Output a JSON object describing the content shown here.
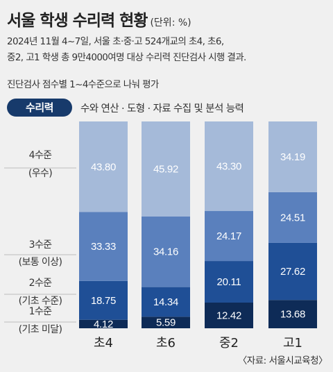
{
  "title": "서울 학생 수리력 현황",
  "unit": "(단위: %)",
  "description": [
    "2024년 11월 4~7일, 서울 초·중·고 524개교의  초4, 초6,",
    "중2, 고1 학생 총 9만4000여명 대상 수리력 진단검사 시행 결과.",
    "진단검사 점수별 1~4수준으로 나눠 평가"
  ],
  "legend": {
    "pill": "수리력",
    "text": "수와 연산 · 도형 · 자료 수집 및 분석 능력"
  },
  "source": "〈자료: 서울시교육청〉",
  "colors": {
    "level4": "#a5bad9",
    "level3": "#5a80bd",
    "level2": "#1f4f96",
    "level1": "#0e2b57",
    "gridline": "#bdbdbd",
    "label_light": "#ffffff"
  },
  "chart_data": {
    "type": "bar",
    "stacked": true,
    "categories": [
      "초4",
      "초6",
      "중2",
      "고1"
    ],
    "series": [
      {
        "name": "1수준\n(기초 미달)",
        "values": [
          4.12,
          5.59,
          12.42,
          13.68
        ]
      },
      {
        "name": "2수준\n(기초 수준)",
        "values": [
          18.75,
          14.34,
          20.11,
          27.62
        ]
      },
      {
        "name": "3수준\n(보통 이상)",
        "values": [
          33.33,
          34.16,
          24.17,
          24.51
        ]
      },
      {
        "name": "4수준\n(우수)",
        "values": [
          43.8,
          45.92,
          43.3,
          34.19
        ]
      }
    ],
    "value_labels": [
      [
        "4.12",
        "5.59",
        "12.42",
        "13.68"
      ],
      [
        "18.75",
        "14.34",
        "20.11",
        "27.62"
      ],
      [
        "33.33",
        "34.16",
        "24.17",
        "24.51"
      ],
      [
        "43.80",
        "45.92",
        "43.30",
        "34.19"
      ]
    ],
    "ylim": [
      0,
      100
    ],
    "grid": false,
    "legend": "left"
  }
}
